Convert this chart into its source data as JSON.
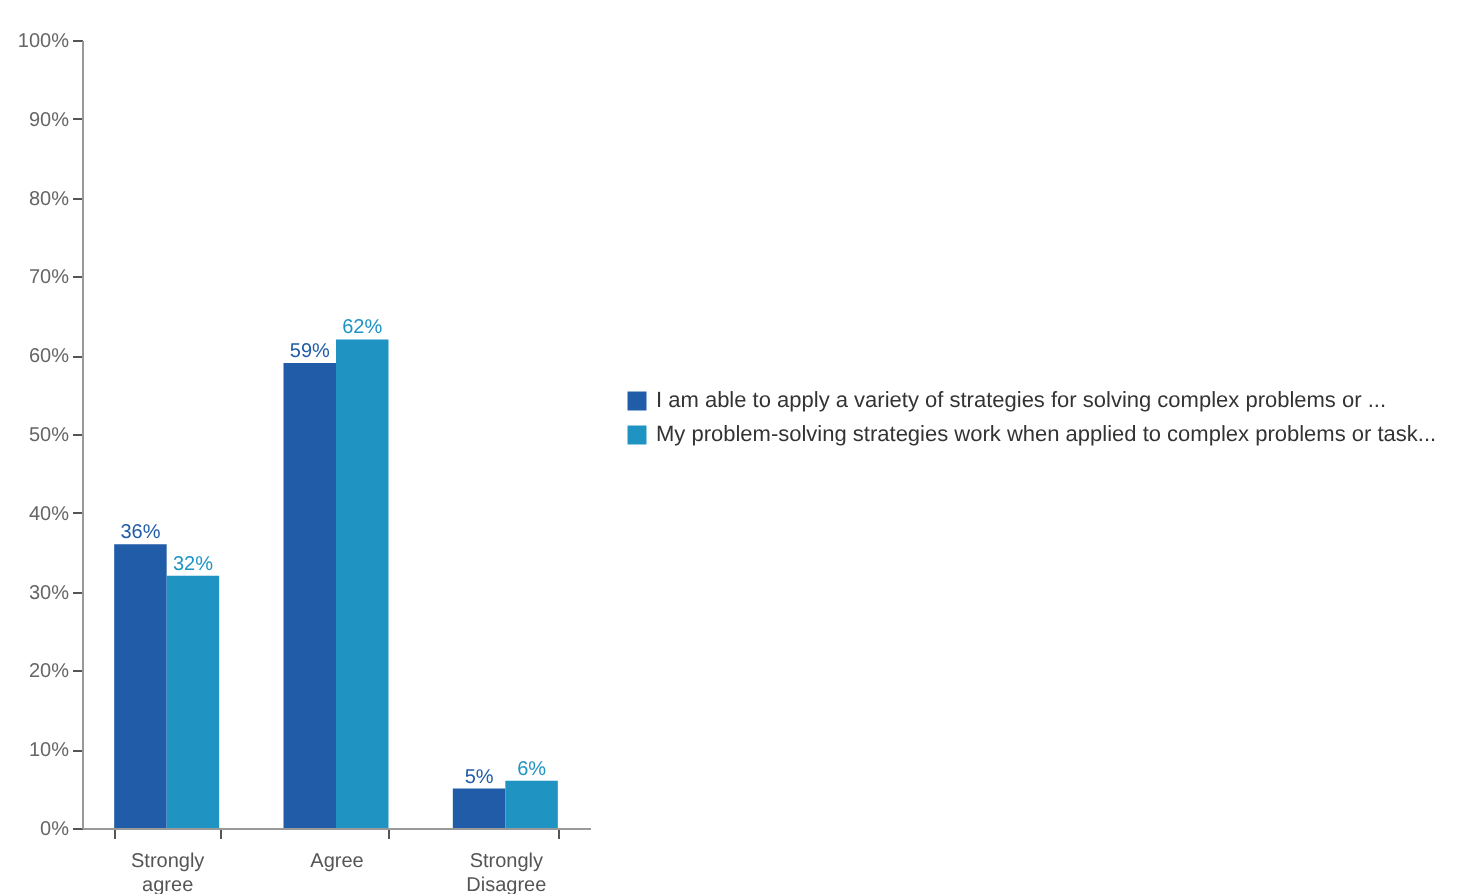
{
  "chart_data": {
    "type": "bar",
    "categories": [
      "Strongly agree",
      "Agree",
      "Strongly Disagree"
    ],
    "series": [
      {
        "name": "I am able to apply a variety of strategies for solving complex problems or ...",
        "color": "#215ca8",
        "values": [
          36,
          59,
          5
        ]
      },
      {
        "name": "My problem-solving strategies work when applied to complex problems or task...",
        "color": "#1f94c3",
        "values": [
          32,
          62,
          6
        ]
      }
    ],
    "ylim": [
      0,
      100
    ],
    "yticks": [
      {
        "value": 0,
        "label": "0%"
      },
      {
        "value": 10,
        "label": "10%"
      },
      {
        "value": 20,
        "label": "20%"
      },
      {
        "value": 30,
        "label": "30%"
      },
      {
        "value": 40,
        "label": "40%"
      },
      {
        "value": 50,
        "label": "50%"
      },
      {
        "value": 60,
        "label": "60%"
      },
      {
        "value": 70,
        "label": "70%"
      },
      {
        "value": 80,
        "label": "80%"
      },
      {
        "value": 90,
        "label": "90%"
      },
      {
        "value": 100,
        "label": "100%"
      }
    ],
    "value_labels": [
      [
        "36%",
        "59%",
        "5%"
      ],
      [
        "32%",
        "62%",
        "6%"
      ]
    ],
    "legend": "right",
    "grid": false
  }
}
